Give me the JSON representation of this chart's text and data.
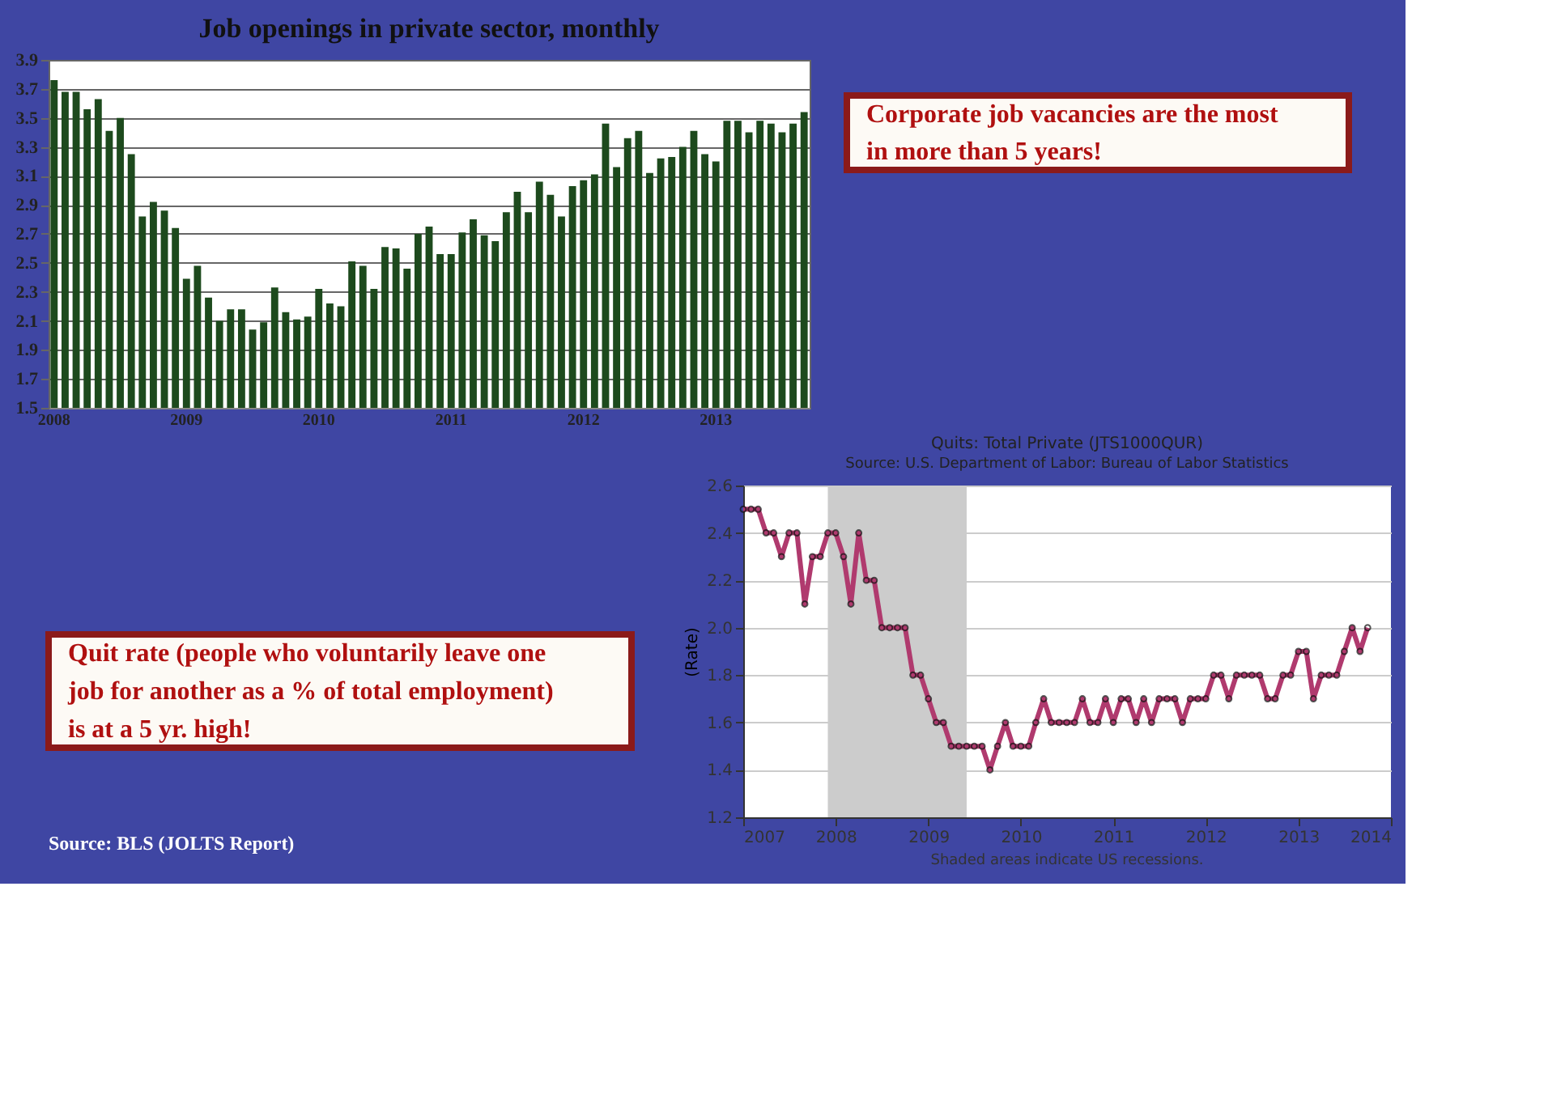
{
  "chart_data": [
    {
      "type": "bar",
      "title": "Job openings in private sector, monthly",
      "categories": [
        "2008",
        null,
        null,
        null,
        null,
        null,
        null,
        null,
        null,
        null,
        null,
        null,
        "2009",
        null,
        null,
        null,
        null,
        null,
        null,
        null,
        null,
        null,
        null,
        null,
        "2010",
        null,
        null,
        null,
        null,
        null,
        null,
        null,
        null,
        null,
        null,
        null,
        "2011",
        null,
        null,
        null,
        null,
        null,
        null,
        null,
        null,
        null,
        null,
        null,
        "2012",
        null,
        null,
        null,
        null,
        null,
        null,
        null,
        null,
        null,
        null,
        null,
        "2013",
        null,
        null,
        null,
        null,
        null,
        null,
        null,
        null
      ],
      "values": [
        3.76,
        3.68,
        3.68,
        3.56,
        3.63,
        3.41,
        3.5,
        3.25,
        2.82,
        2.92,
        2.86,
        2.74,
        2.39,
        2.48,
        2.26,
        2.1,
        2.18,
        2.18,
        2.04,
        2.09,
        2.33,
        2.16,
        2.11,
        2.13,
        2.32,
        2.22,
        2.2,
        2.51,
        2.48,
        2.32,
        2.61,
        2.6,
        2.46,
        2.7,
        2.75,
        2.56,
        2.56,
        2.71,
        2.8,
        2.69,
        2.65,
        2.85,
        2.99,
        2.85,
        3.06,
        2.97,
        2.82,
        3.03,
        3.07,
        3.11,
        3.46,
        3.16,
        3.36,
        3.41,
        3.12,
        3.22,
        3.23,
        3.3,
        3.41,
        3.25,
        3.2,
        3.48,
        3.48,
        3.4,
        3.48,
        3.46,
        3.4,
        3.46,
        3.54
      ],
      "color": "#1d4a1d",
      "ylim": [
        1.5,
        3.9
      ],
      "yticks": [
        1.5,
        1.7,
        1.9,
        2.1,
        2.3,
        2.5,
        2.7,
        2.9,
        3.1,
        3.3,
        3.5,
        3.7,
        3.9
      ],
      "grid": "y",
      "annotations": [
        "Corporate job vacancies are the most in more than 5 years!"
      ]
    },
    {
      "type": "line",
      "title": "Quits: Total Private (JTS1000QUR)",
      "subtitle": "Source: U.S. Department of Labor: Bureau of Labor Statistics",
      "ylabel": "(Rate)",
      "x": [
        "2007-01",
        "2007-02",
        "2007-03",
        "2007-04",
        "2007-05",
        "2007-06",
        "2007-07",
        "2007-08",
        "2007-09",
        "2007-10",
        "2007-11",
        "2007-12",
        "2008-01",
        "2008-02",
        "2008-03",
        "2008-04",
        "2008-05",
        "2008-06",
        "2008-07",
        "2008-08",
        "2008-09",
        "2008-10",
        "2008-11",
        "2008-12",
        "2009-01",
        "2009-02",
        "2009-03",
        "2009-04",
        "2009-05",
        "2009-06",
        "2009-07",
        "2009-08",
        "2009-09",
        "2009-10",
        "2009-11",
        "2009-12",
        "2010-01",
        "2010-02",
        "2010-03",
        "2010-04",
        "2010-05",
        "2010-06",
        "2010-07",
        "2010-08",
        "2010-09",
        "2010-10",
        "2010-11",
        "2010-12",
        "2011-01",
        "2011-02",
        "2011-03",
        "2011-04",
        "2011-05",
        "2011-06",
        "2011-07",
        "2011-08",
        "2011-09",
        "2011-10",
        "2011-11",
        "2011-12",
        "2012-01",
        "2012-02",
        "2012-03",
        "2012-04",
        "2012-05",
        "2012-06",
        "2012-07",
        "2012-08",
        "2012-09",
        "2012-10",
        "2012-11",
        "2012-12",
        "2013-01",
        "2013-02",
        "2013-03",
        "2013-04",
        "2013-05",
        "2013-06",
        "2013-07",
        "2013-08",
        "2013-09",
        "2013-10"
      ],
      "series": [
        {
          "color": "#b03a6e",
          "values": [
            2.5,
            2.5,
            2.5,
            2.4,
            2.4,
            2.3,
            2.4,
            2.4,
            2.1,
            2.3,
            2.3,
            2.4,
            2.4,
            2.3,
            2.1,
            2.4,
            2.2,
            2.2,
            2.0,
            2.0,
            2.0,
            2.0,
            1.8,
            1.8,
            1.7,
            1.6,
            1.6,
            1.5,
            1.5,
            1.5,
            1.5,
            1.5,
            1.4,
            1.5,
            1.6,
            1.5,
            1.5,
            1.5,
            1.6,
            1.7,
            1.6,
            1.6,
            1.6,
            1.6,
            1.7,
            1.6,
            1.6,
            1.7,
            1.6,
            1.7,
            1.7,
            1.6,
            1.7,
            1.6,
            1.7,
            1.7,
            1.7,
            1.6,
            1.7,
            1.7,
            1.7,
            1.8,
            1.8,
            1.7,
            1.8,
            1.8,
            1.8,
            1.8,
            1.7,
            1.7,
            1.8,
            1.8,
            1.9,
            1.9,
            1.7,
            1.8,
            1.8,
            1.8,
            1.9,
            2.0,
            1.9,
            2.0
          ]
        }
      ],
      "xlim": [
        "2007-01-01",
        "2014-01-01"
      ],
      "xticks": [
        "2007",
        "2008",
        "2009",
        "2010",
        "2011",
        "2012",
        "2013",
        "2014"
      ],
      "ylim": [
        1.2,
        2.6
      ],
      "yticks": [
        {
          "value": 1.2,
          "label": "1.2"
        },
        1.4,
        1.6,
        1.8,
        {
          "value": 2.0,
          "label": "2.0"
        },
        2.2,
        2.4,
        2.6
      ],
      "grid": "y",
      "marker": "circle",
      "line_style": "solid",
      "bands": [
        {
          "axis": "x",
          "from": "2007-12-01",
          "to": "2009-06-01",
          "color": "#cccccc"
        }
      ],
      "annotations": [
        "Shaded areas indicate US recessions.",
        "Quit rate (people who voluntarily leave one job for another as a % of total employment) is at a 5 yr. high!",
        "Source: BLS (JOLTS Report)"
      ]
    }
  ]
}
